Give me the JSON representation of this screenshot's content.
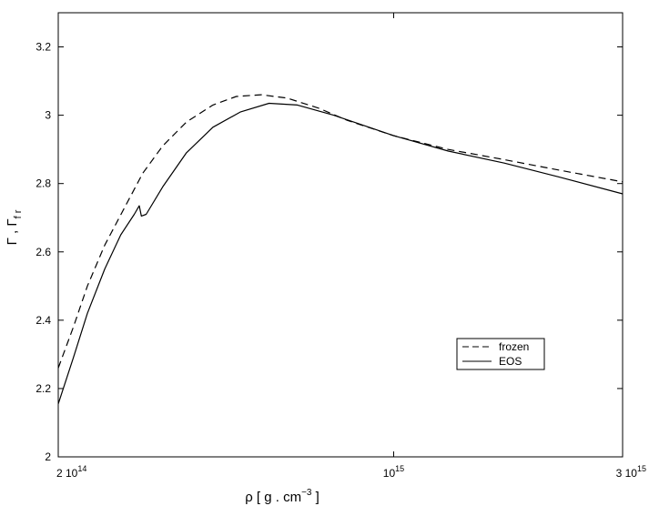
{
  "chart_data": {
    "type": "line",
    "xscale": "log",
    "xlim": [
      200000000000000.0,
      3000000000000000.0
    ],
    "ylim": [
      2,
      3.3
    ],
    "grid": false,
    "legend_position": "lower-right",
    "xlabel": {
      "base": "ρ [ g . cm",
      "sup": "−3",
      "tail": " ]"
    },
    "ylabel": {
      "g1": "Γ",
      "sep": " , ",
      "g2": "Γ",
      "sub": "f r"
    },
    "x_ticks": [
      {
        "value": 200000000000000.0,
        "label": "2 10",
        "sup": "14"
      },
      {
        "value": 1000000000000000.0,
        "label": "10",
        "sup": "15"
      },
      {
        "value": 3000000000000000.0,
        "label": "3 10",
        "sup": "15"
      }
    ],
    "y_ticks": [
      {
        "value": 2.0,
        "label": "2"
      },
      {
        "value": 2.2,
        "label": "2.2"
      },
      {
        "value": 2.4,
        "label": "2.4"
      },
      {
        "value": 2.6,
        "label": "2.6"
      },
      {
        "value": 2.8,
        "label": "2.8"
      },
      {
        "value": 3.0,
        "label": "3"
      },
      {
        "value": 3.2,
        "label": "3.2"
      }
    ],
    "series": [
      {
        "name": "frozen",
        "dash": "dashed",
        "points": [
          [
            200000000000000.0,
            2.26
          ],
          [
            215000000000000.0,
            2.38
          ],
          [
            230000000000000.0,
            2.5
          ],
          [
            250000000000000.0,
            2.62
          ],
          [
            275000000000000.0,
            2.73
          ],
          [
            300000000000000.0,
            2.83
          ],
          [
            330000000000000.0,
            2.91
          ],
          [
            370000000000000.0,
            2.98
          ],
          [
            420000000000000.0,
            3.03
          ],
          [
            470000000000000.0,
            3.055
          ],
          [
            530000000000000.0,
            3.06
          ],
          [
            600000000000000.0,
            3.05
          ],
          [
            700000000000000.0,
            3.02
          ],
          [
            800000000000000.0,
            2.985
          ],
          [
            1000000000000000.0,
            2.94
          ],
          [
            1300000000000000.0,
            2.9
          ],
          [
            1700000000000000.0,
            2.87
          ],
          [
            2200000000000000.0,
            2.84
          ],
          [
            3000000000000000.0,
            2.805
          ]
        ]
      },
      {
        "name": "EOS",
        "dash": "solid",
        "points": [
          [
            200000000000000.0,
            2.155
          ],
          [
            215000000000000.0,
            2.29
          ],
          [
            230000000000000.0,
            2.42
          ],
          [
            250000000000000.0,
            2.55
          ],
          [
            270000000000000.0,
            2.65
          ],
          [
            288000000000000.0,
            2.71
          ],
          [
            295000000000000.0,
            2.735
          ],
          [
            298000000000000.0,
            2.705
          ],
          [
            305000000000000.0,
            2.71
          ],
          [
            330000000000000.0,
            2.79
          ],
          [
            370000000000000.0,
            2.89
          ],
          [
            420000000000000.0,
            2.965
          ],
          [
            480000000000000.0,
            3.01
          ],
          [
            550000000000000.0,
            3.035
          ],
          [
            630000000000000.0,
            3.03
          ],
          [
            750000000000000.0,
            3.0
          ],
          [
            1000000000000000.0,
            2.94
          ],
          [
            1300000000000000.0,
            2.895
          ],
          [
            1700000000000000.0,
            2.86
          ],
          [
            2200000000000000.0,
            2.82
          ],
          [
            3000000000000000.0,
            2.77
          ]
        ]
      }
    ]
  }
}
